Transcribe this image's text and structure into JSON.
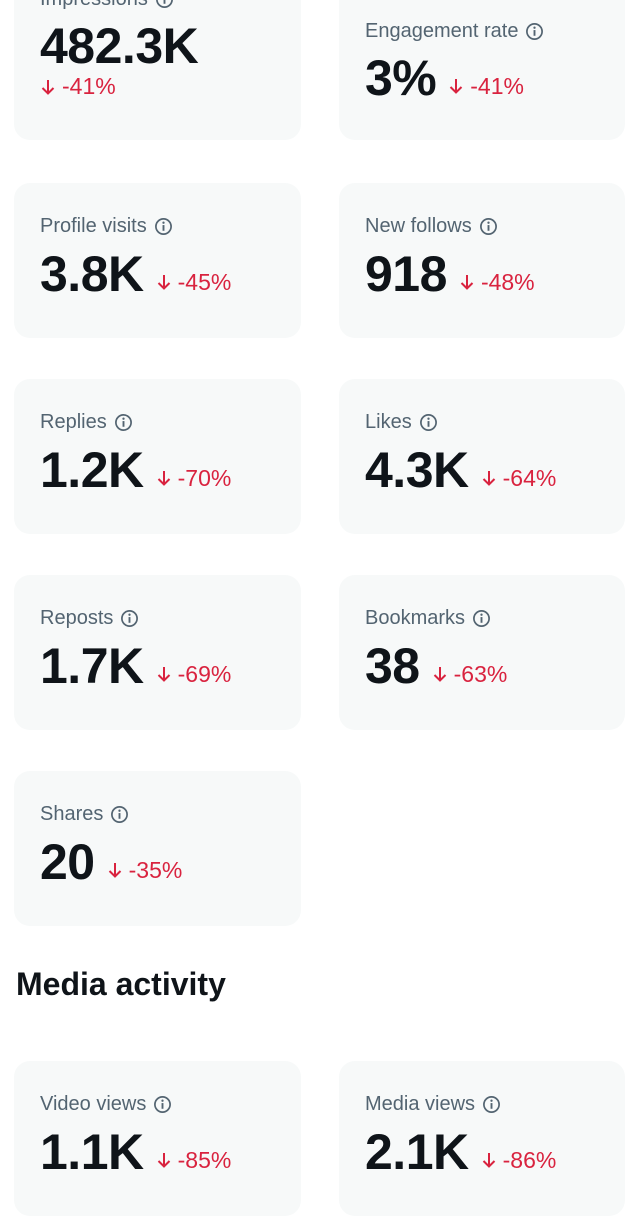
{
  "colors": {
    "card_bg": "#f7f9f9",
    "label": "#536471",
    "value": "#0f1419",
    "negative": "#d9233f"
  },
  "icons": {
    "info": "info-circle-icon",
    "down": "arrow-down-icon"
  },
  "metrics": [
    {
      "label": "Impressions",
      "value": "482.3K",
      "change": "-41%"
    },
    {
      "label": "Engagement rate",
      "value": "3%",
      "change": "-41%"
    },
    {
      "label": "Profile visits",
      "value": "3.8K",
      "change": "-45%"
    },
    {
      "label": "New follows",
      "value": "918",
      "change": "-48%"
    },
    {
      "label": "Replies",
      "value": "1.2K",
      "change": "-70%"
    },
    {
      "label": "Likes",
      "value": "4.3K",
      "change": "-64%"
    },
    {
      "label": "Reposts",
      "value": "1.7K",
      "change": "-69%"
    },
    {
      "label": "Bookmarks",
      "value": "38",
      "change": "-63%"
    },
    {
      "label": "Shares",
      "value": "20",
      "change": "-35%"
    }
  ],
  "media_section": {
    "title": "Media activity",
    "metrics": [
      {
        "label": "Video views",
        "value": "1.1K",
        "change": "-85%"
      },
      {
        "label": "Media views",
        "value": "2.1K",
        "change": "-86%"
      }
    ]
  }
}
